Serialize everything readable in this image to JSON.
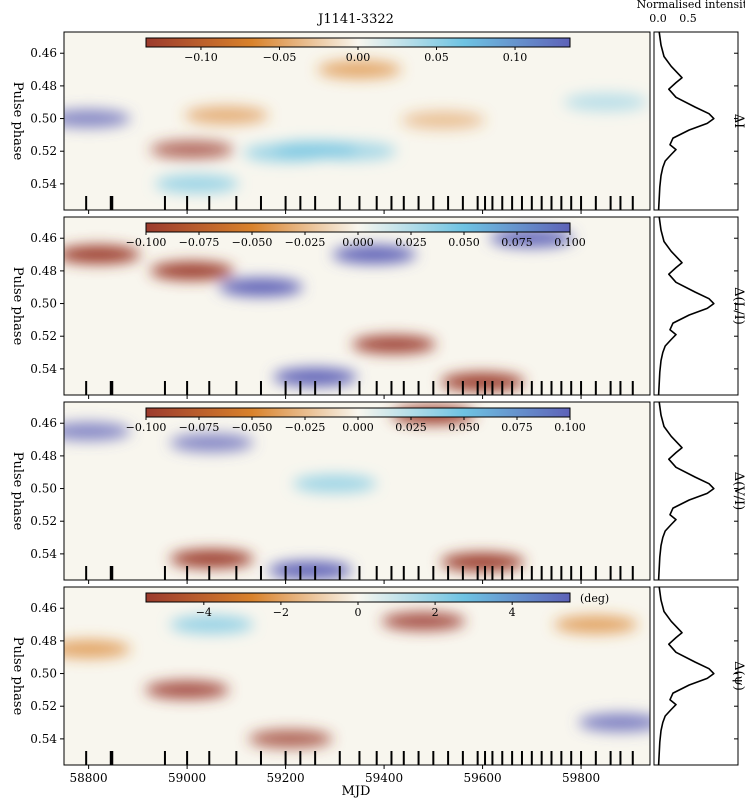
{
  "chart_data": {
    "type": "heatmap",
    "title": "J1141-3322",
    "xlabel": "MJD",
    "ylabel": "Pulse phase",
    "xlim": [
      58750,
      59940
    ],
    "ylim": [
      0.447,
      0.556
    ],
    "x_ticks": [
      58800,
      59000,
      59200,
      59400,
      59600,
      59800
    ],
    "y_ticks": [
      0.46,
      0.48,
      0.5,
      0.52,
      0.54
    ],
    "observation_mjds": [
      58795,
      58845,
      58848,
      58955,
      59000,
      59045,
      59100,
      59150,
      59200,
      59230,
      59260,
      59310,
      59350,
      59385,
      59415,
      59440,
      59470,
      59500,
      59530,
      59560,
      59590,
      59605,
      59620,
      59640,
      59660,
      59680,
      59700,
      59720,
      59740,
      59760,
      59780,
      59800,
      59830,
      59860,
      59880,
      59905
    ],
    "profile": {
      "xlabel": "Normalised intensity",
      "x_ticks": [
        0.0,
        0.5
      ],
      "phase": [
        0.447,
        0.455,
        0.462,
        0.468,
        0.475,
        0.478,
        0.482,
        0.487,
        0.493,
        0.497,
        0.5,
        0.503,
        0.507,
        0.512,
        0.516,
        0.519,
        0.522,
        0.526,
        0.53,
        0.535,
        0.542,
        0.549,
        0.556
      ],
      "intensity": [
        0.02,
        0.05,
        0.1,
        0.22,
        0.4,
        0.3,
        0.18,
        0.3,
        0.62,
        0.85,
        0.93,
        0.82,
        0.52,
        0.25,
        0.2,
        0.3,
        0.22,
        0.12,
        0.08,
        0.05,
        0.03,
        0.02,
        0.01
      ]
    },
    "panels": [
      {
        "quantity": "ΔI",
        "colorbar_ticks": [
          "−0.10",
          "−0.05",
          "0.00",
          "0.05",
          "0.10"
        ],
        "colorbar_values": [
          -0.1,
          -0.05,
          0.0,
          0.05,
          0.1
        ],
        "vlim": [
          -0.135,
          0.135
        ],
        "colorbar_unit": "",
        "features": [
          {
            "mjd": 58800,
            "phase": 0.5,
            "value": 0.08
          },
          {
            "mjd": 59010,
            "phase": 0.519,
            "value": -0.08
          },
          {
            "mjd": 59020,
            "phase": 0.54,
            "value": 0.07
          },
          {
            "mjd": 59200,
            "phase": 0.521,
            "value": 0.07
          },
          {
            "mjd": 59260,
            "phase": 0.519,
            "value": 0.07
          },
          {
            "mjd": 59340,
            "phase": 0.52,
            "value": 0.06
          },
          {
            "mjd": 59350,
            "phase": 0.47,
            "value": -0.07
          },
          {
            "mjd": 59080,
            "phase": 0.498,
            "value": -0.06
          },
          {
            "mjd": 59520,
            "phase": 0.501,
            "value": -0.04
          },
          {
            "mjd": 59850,
            "phase": 0.49,
            "value": 0.04
          }
        ]
      },
      {
        "quantity": "Δ(L/I)",
        "colorbar_ticks": [
          "−0.100",
          "−0.075",
          "−0.050",
          "−0.025",
          "0.000",
          "0.025",
          "0.050",
          "0.075",
          "0.100"
        ],
        "colorbar_values": [
          -0.1,
          -0.075,
          -0.05,
          -0.025,
          0.0,
          0.025,
          0.05,
          0.075,
          0.1
        ],
        "vlim": [
          -0.1,
          0.1
        ],
        "colorbar_unit": "",
        "features": [
          {
            "mjd": 58820,
            "phase": 0.47,
            "value": -0.09
          },
          {
            "mjd": 59010,
            "phase": 0.48,
            "value": -0.09
          },
          {
            "mjd": 59150,
            "phase": 0.49,
            "value": 0.1
          },
          {
            "mjd": 59380,
            "phase": 0.47,
            "value": 0.1
          },
          {
            "mjd": 59260,
            "phase": 0.545,
            "value": 0.1
          },
          {
            "mjd": 59600,
            "phase": 0.548,
            "value": -0.1
          },
          {
            "mjd": 59420,
            "phase": 0.525,
            "value": -0.08
          },
          {
            "mjd": 59700,
            "phase": 0.46,
            "value": 0.08
          }
        ]
      },
      {
        "quantity": "Δ(V/I)",
        "colorbar_ticks": [
          "−0.100",
          "−0.075",
          "−0.050",
          "−0.025",
          "0.000",
          "0.025",
          "0.050",
          "0.075",
          "0.100"
        ],
        "colorbar_values": [
          -0.1,
          -0.075,
          -0.05,
          -0.025,
          0.0,
          0.025,
          0.05,
          0.075,
          0.1
        ],
        "vlim": [
          -0.1,
          0.1
        ],
        "colorbar_unit": "",
        "features": [
          {
            "mjd": 58800,
            "phase": 0.465,
            "value": 0.06
          },
          {
            "mjd": 59050,
            "phase": 0.472,
            "value": 0.06
          },
          {
            "mjd": 59300,
            "phase": 0.497,
            "value": 0.05
          },
          {
            "mjd": 59050,
            "phase": 0.543,
            "value": -0.09
          },
          {
            "mjd": 59250,
            "phase": 0.55,
            "value": 0.1
          },
          {
            "mjd": 59600,
            "phase": 0.545,
            "value": -0.09
          },
          {
            "mjd": 59500,
            "phase": 0.455,
            "value": -0.09
          }
        ]
      },
      {
        "quantity": "Δ(ψ)",
        "colorbar_ticks": [
          "−4",
          "−2",
          "0",
          "2",
          "4"
        ],
        "colorbar_values": [
          -4,
          -2,
          0,
          2,
          4
        ],
        "vlim": [
          -5.5,
          5.5
        ],
        "colorbar_unit": "(deg)",
        "features": [
          {
            "mjd": 58800,
            "phase": 0.485,
            "value": -3.0
          },
          {
            "mjd": 59000,
            "phase": 0.51,
            "value": -4.0
          },
          {
            "mjd": 59050,
            "phase": 0.47,
            "value": 3.0
          },
          {
            "mjd": 59480,
            "phase": 0.468,
            "value": -4.0
          },
          {
            "mjd": 59210,
            "phase": 0.54,
            "value": -3.5
          },
          {
            "mjd": 59830,
            "phase": 0.47,
            "value": -3.0
          },
          {
            "mjd": 59880,
            "phase": 0.53,
            "value": 3.5
          }
        ]
      }
    ]
  },
  "colors": {
    "negative_dark": "#9b3a2c",
    "negative": "#d9822b",
    "neutral": "#f8f6ee",
    "positive": "#6ec3e2",
    "positive_dark": "#5e62b8"
  }
}
